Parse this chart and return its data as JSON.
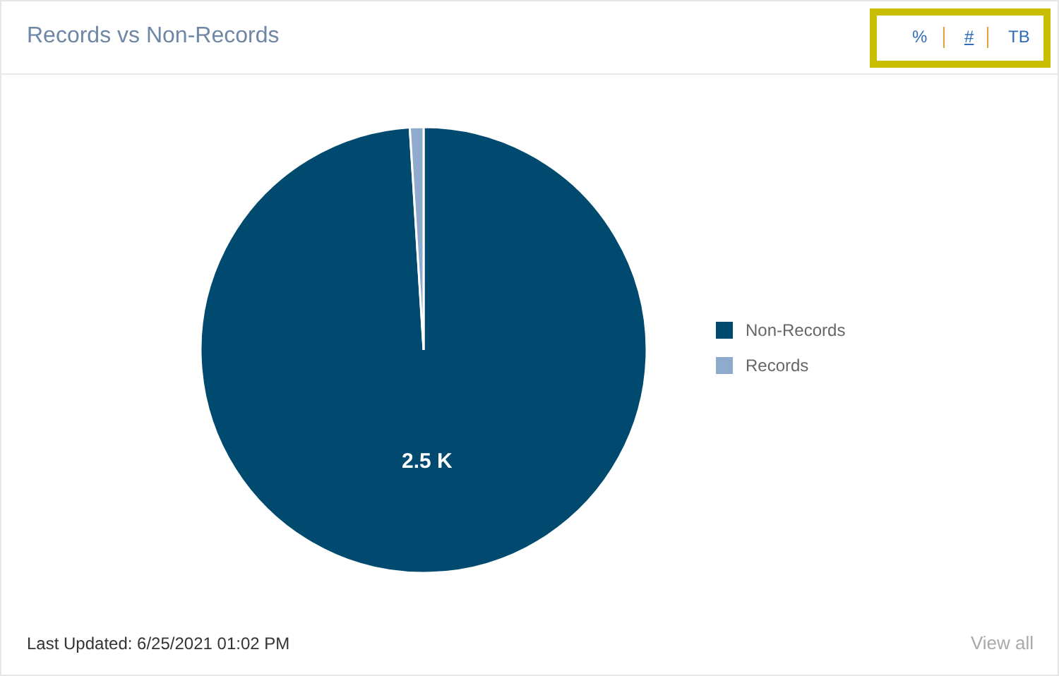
{
  "chart_data": {
    "type": "pie",
    "title": "Records vs Non-Records",
    "categories": [
      "Non-Records",
      "Records"
    ],
    "values": [
      2500,
      25
    ],
    "colors": [
      "#004a6f",
      "#8eaacd"
    ],
    "value_labels": [
      "2.5 K",
      null
    ],
    "legend": "right",
    "annotations": [
      "%",
      "#",
      "TB",
      "Last Updated: 6/25/2021 01:02 PM",
      "View all"
    ]
  }
}
